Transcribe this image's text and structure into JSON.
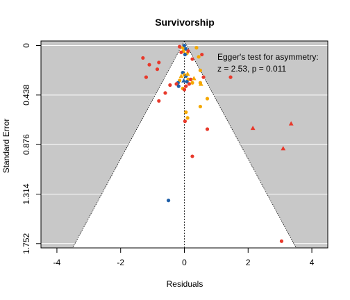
{
  "chart_data": {
    "type": "scatter",
    "title": "Survivorship",
    "xlabel": "Residuals",
    "ylabel": "Standard Error",
    "xlim": [
      -4.5,
      4.5
    ],
    "ylim": [
      1.79,
      -0.04
    ],
    "y_reversed": true,
    "x_ticks": [
      -4,
      -2,
      0,
      2,
      4
    ],
    "x_tick_labels": [
      "-4",
      "-2",
      "0",
      "2",
      "4"
    ],
    "y_ticks": [
      0,
      0.438,
      0.876,
      1.314,
      1.752
    ],
    "y_tick_labels": [
      "0",
      "0.438",
      "0.876",
      "1.314",
      "1.752"
    ],
    "horizontal_grid": true,
    "funnel": {
      "center": 0,
      "z": 1.96,
      "outside_color": "#c8c8c8",
      "inside_color": "#ffffff"
    },
    "reference_line_x": 0,
    "annotation": {
      "line1": "Egger's test for asymmetry:",
      "line2": "z = 2.53, p = 0.011"
    },
    "colors": {
      "red": "#e8392b",
      "orange": "#f5a800",
      "blue": "#1f5fa8"
    },
    "points": [
      {
        "x": -0.15,
        "y": 0.01,
        "c": "red",
        "s": "circle"
      },
      {
        "x": -0.05,
        "y": 0.02,
        "c": "orange",
        "s": "circle"
      },
      {
        "x": 0.0,
        "y": 0.0,
        "c": "blue",
        "s": "circle"
      },
      {
        "x": 0.05,
        "y": 0.03,
        "c": "blue",
        "s": "circle"
      },
      {
        "x": -0.03,
        "y": 0.05,
        "c": "orange",
        "s": "circle"
      },
      {
        "x": 0.08,
        "y": 0.07,
        "c": "orange",
        "s": "circle"
      },
      {
        "x": 0.12,
        "y": 0.05,
        "c": "red",
        "s": "circle"
      },
      {
        "x": -0.1,
        "y": 0.06,
        "c": "red",
        "s": "circle"
      },
      {
        "x": 0.02,
        "y": 0.08,
        "c": "blue",
        "s": "circle"
      },
      {
        "x": 0.25,
        "y": 0.12,
        "c": "red",
        "s": "circle"
      },
      {
        "x": 0.38,
        "y": 0.02,
        "c": "orange",
        "s": "circle"
      },
      {
        "x": 0.45,
        "y": 0.1,
        "c": "orange",
        "s": "circle"
      },
      {
        "x": 0.5,
        "y": 0.22,
        "c": "orange",
        "s": "circle"
      },
      {
        "x": 0.55,
        "y": 0.08,
        "c": "red",
        "s": "circle"
      },
      {
        "x": 0.6,
        "y": 0.28,
        "c": "red",
        "s": "circle"
      },
      {
        "x": -1.3,
        "y": 0.11,
        "c": "red",
        "s": "circle"
      },
      {
        "x": -1.1,
        "y": 0.17,
        "c": "red",
        "s": "circle"
      },
      {
        "x": -0.8,
        "y": 0.15,
        "c": "red",
        "s": "circle"
      },
      {
        "x": -0.85,
        "y": 0.21,
        "c": "red",
        "s": "circle"
      },
      {
        "x": -1.2,
        "y": 0.28,
        "c": "red",
        "s": "circle"
      },
      {
        "x": -0.05,
        "y": 0.24,
        "c": "blue",
        "s": "circle"
      },
      {
        "x": 0.0,
        "y": 0.26,
        "c": "orange",
        "s": "circle"
      },
      {
        "x": 0.05,
        "y": 0.27,
        "c": "blue",
        "s": "circle"
      },
      {
        "x": -0.1,
        "y": 0.27,
        "c": "orange",
        "s": "triangle"
      },
      {
        "x": 0.1,
        "y": 0.25,
        "c": "orange",
        "s": "triangle"
      },
      {
        "x": 0.12,
        "y": 0.3,
        "c": "orange",
        "s": "circle"
      },
      {
        "x": -0.02,
        "y": 0.31,
        "c": "blue",
        "s": "triangle"
      },
      {
        "x": 0.08,
        "y": 0.32,
        "c": "blue",
        "s": "circle"
      },
      {
        "x": -0.15,
        "y": 0.31,
        "c": "orange",
        "s": "circle"
      },
      {
        "x": -0.2,
        "y": 0.33,
        "c": "blue",
        "s": "circle"
      },
      {
        "x": 0.15,
        "y": 0.34,
        "c": "red",
        "s": "circle"
      },
      {
        "x": -0.25,
        "y": 0.34,
        "c": "red",
        "s": "circle"
      },
      {
        "x": -0.18,
        "y": 0.36,
        "c": "blue",
        "s": "circle"
      },
      {
        "x": 0.05,
        "y": 0.36,
        "c": "red",
        "s": "circle"
      },
      {
        "x": -0.05,
        "y": 0.38,
        "c": "orange",
        "s": "circle"
      },
      {
        "x": 0.0,
        "y": 0.39,
        "c": "red",
        "s": "circle"
      },
      {
        "x": 0.2,
        "y": 0.3,
        "c": "red",
        "s": "circle"
      },
      {
        "x": 0.25,
        "y": 0.33,
        "c": "orange",
        "s": "circle"
      },
      {
        "x": 0.3,
        "y": 0.29,
        "c": "orange",
        "s": "triangle"
      },
      {
        "x": 0.5,
        "y": 0.33,
        "c": "orange",
        "s": "circle"
      },
      {
        "x": 0.52,
        "y": 0.34,
        "c": "orange",
        "s": "triangle"
      },
      {
        "x": -0.45,
        "y": 0.35,
        "c": "red",
        "s": "circle"
      },
      {
        "x": -0.6,
        "y": 0.42,
        "c": "red",
        "s": "circle"
      },
      {
        "x": -0.8,
        "y": 0.49,
        "c": "red",
        "s": "circle"
      },
      {
        "x": 1.45,
        "y": 0.28,
        "c": "red",
        "s": "circle"
      },
      {
        "x": 0.72,
        "y": 0.47,
        "c": "orange",
        "s": "circle"
      },
      {
        "x": 0.5,
        "y": 0.54,
        "c": "orange",
        "s": "circle"
      },
      {
        "x": 0.05,
        "y": 0.59,
        "c": "orange",
        "s": "circle"
      },
      {
        "x": 0.1,
        "y": 0.64,
        "c": "orange",
        "s": "circle"
      },
      {
        "x": 0.02,
        "y": 0.67,
        "c": "red",
        "s": "circle"
      },
      {
        "x": 0.72,
        "y": 0.74,
        "c": "red",
        "s": "circle"
      },
      {
        "x": 2.15,
        "y": 0.73,
        "c": "red",
        "s": "triangle"
      },
      {
        "x": 3.35,
        "y": 0.69,
        "c": "red",
        "s": "triangle"
      },
      {
        "x": 3.1,
        "y": 0.91,
        "c": "red",
        "s": "triangle"
      },
      {
        "x": 0.25,
        "y": 0.98,
        "c": "red",
        "s": "circle"
      },
      {
        "x": -0.5,
        "y": 1.37,
        "c": "blue",
        "s": "circle"
      },
      {
        "x": 3.05,
        "y": 1.73,
        "c": "red",
        "s": "circle"
      }
    ]
  }
}
